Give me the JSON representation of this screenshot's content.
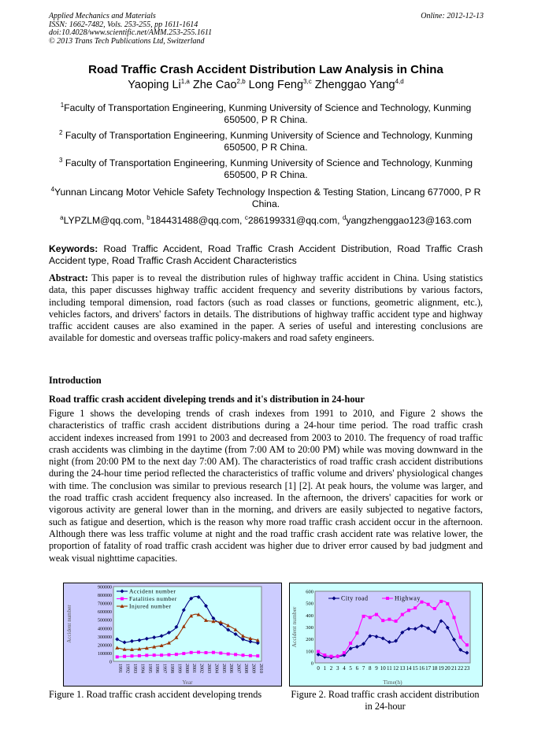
{
  "header": {
    "journal": "Applied Mechanics and Materials",
    "issn": "ISSN: 1662-7482, Vols. 253-255, pp 1611-1614",
    "doi": "doi:10.4028/www.scientific.net/AMM.253-255.1611",
    "copyright": "© 2013 Trans Tech Publications Ltd, Switzerland",
    "online": "Online: 2012-12-13"
  },
  "title": "Road Traffic Crash Accident Distribution Law Analysis in China",
  "authors": [
    {
      "name": "Yaoping Li",
      "sup": "1,a"
    },
    {
      "name": "Zhe Cao",
      "sup": "2,b"
    },
    {
      "name": "Long Feng",
      "sup": "3,c"
    },
    {
      "name": "Zhenggao Yang",
      "sup": "4,d"
    }
  ],
  "affiliations": [
    {
      "sup": "1",
      "text": "Faculty of Transportation Engineering, Kunming University of Science and Technology, Kunming 650500, P R China."
    },
    {
      "sup": "2",
      "text": " Faculty of Transportation Engineering, Kunming University of Science and Technology, Kunming 650500, P R China."
    },
    {
      "sup": "3",
      "text": " Faculty of Transportation Engineering, Kunming University of Science and Technology, Kunming 650500, P R China."
    },
    {
      "sup": "4",
      "text": "Yunnan Lincang Motor Vehicle Safety Technology Inspection & Testing Station, Lincang 677000, P R China."
    }
  ],
  "emails": [
    {
      "sup": "a",
      "text": "LYPZLM@qq.com, "
    },
    {
      "sup": "b",
      "text": "184431488@qq.com, "
    },
    {
      "sup": "c",
      "text": "286199331@qq.com, "
    },
    {
      "sup": "d",
      "text": "yangzhenggao123@163.com"
    }
  ],
  "keywords": {
    "label": "Keywords:",
    "text": " Road Traffic Accident, Road Traffic Crash Accident Distribution, Road Traffic Crash Accident type, Road Traffic Crash Accident Characteristics"
  },
  "abstract": {
    "label": "Abstract:",
    "text": " This paper is to reveal the distribution rules of highway traffic accident in China. Using statistics data, this paper discusses highway traffic accident frequency and severity distributions by various factors, including temporal dimension, road factors (such as road classes or functions, geometric alignment, etc.), vehicles factors, and drivers' factors in details. The distributions of highway traffic accident type and highway traffic accident causes are also examined in the paper. A series of useful and interesting conclusions are available for domestic and overseas traffic policy-makers and road safety engineers."
  },
  "intro_heading": "Introduction",
  "sub_heading": "Road traffic crash accident diveleping trends and it's distribution in 24-hour",
  "body": "Figure 1 shows the developing trends of crash indexes from 1991 to 2010, and Figure 2 shows the characteristics of traffic crash accident distributions during a 24-hour time period. The road traffic crash accident indexes increased from 1991 to 2003 and decreased from 2003 to 2010. The frequency of road traffic crash accidents was climbing in the daytime (from 7:00 AM to 20:00 PM) while was moving downward in the night (from 20:00 PM to the next day 7:00 AM). The characteristics of road traffic crash accident distributions during the 24-hour time period reflected the characteristics of traffic volume and drivers' physiological changes with time. The conclusion was similar to previous research [1] [2]. At peak hours, the volume was larger, and the road traffic crash accident frequency also increased. In the afternoon, the drivers' capacities for work or vigorous activity are general lower than in the morning, and drivers are easily subjected to negative factors, such as fatigue and desertion, which is the reason why more road traffic crash accident occur in the afternoon. Although there was less traffic volume at night and the road traffic crash accident rate was relative lower, the proportion of fatality of road traffic crash accident was higher due to driver error caused by bad judgment and weak visual nighttime capacities.",
  "captions": {
    "fig1": "Figure 1. Road traffic crash accident developing trends",
    "fig2": "Figure 2. Road traffic crash accident distribution in 24-hour"
  },
  "chart_data": [
    {
      "type": "line",
      "xlabel": "Year",
      "ylabel": "Accident number",
      "ylim": [
        0,
        900000
      ],
      "yticks": [
        "0",
        "100000",
        "200000",
        "300000",
        "400000",
        "500000",
        "600000",
        "700000",
        "800000",
        "900000"
      ],
      "legend": "top-left",
      "plot_bg": "#ccffff",
      "frame_bg": "#ccccff",
      "x": [
        "1991",
        "1992",
        "1993",
        "1994",
        "1995",
        "1996",
        "1997",
        "1998",
        "1999",
        "2000",
        "2001",
        "2002",
        "2003",
        "2004",
        "2005",
        "2006",
        "2007",
        "2008",
        "2009",
        "2010"
      ],
      "series": [
        {
          "name": "Accident number",
          "color": "#000080",
          "marker": "diamond",
          "values": [
            265000,
            228000,
            243000,
            254000,
            272000,
            288000,
            305000,
            346000,
            413000,
            617000,
            755000,
            773000,
            667000,
            518000,
            450000,
            379000,
            327000,
            265000,
            238000,
            220000
          ]
        },
        {
          "name": "Fatalities number",
          "color": "#ff00ff",
          "marker": "square",
          "values": [
            53000,
            59000,
            64000,
            67000,
            72000,
            74000,
            74000,
            79000,
            84000,
            94000,
            106000,
            109000,
            104000,
            107000,
            99000,
            89000,
            82000,
            73000,
            68000,
            65000
          ]
        },
        {
          "name": "Injured number",
          "color": "#993300",
          "marker": "triangle",
          "values": [
            162000,
            144000,
            142000,
            148000,
            159000,
            174000,
            190000,
            222000,
            286000,
            419000,
            546000,
            562000,
            494000,
            481000,
            470000,
            431000,
            380000,
            305000,
            275000,
            254000
          ]
        }
      ]
    },
    {
      "type": "line",
      "xlabel": "Time(h)",
      "ylabel": "Accident number",
      "ylim": [
        0,
        600
      ],
      "yticks": [
        "0",
        "100",
        "200",
        "300",
        "400",
        "500",
        "600"
      ],
      "legend": "top",
      "plot_bg": "#ccccff",
      "frame_bg": "#ccffff",
      "x": [
        "0",
        "1",
        "2",
        "3",
        "4",
        "5",
        "6",
        "7",
        "8",
        "9",
        "10",
        "11",
        "12",
        "13",
        "14",
        "15",
        "16",
        "17",
        "18",
        "19",
        "20",
        "21",
        "22",
        "23"
      ],
      "series": [
        {
          "name": "City road",
          "color": "#000080",
          "marker": "diamond",
          "values": [
            70,
            50,
            45,
            55,
            65,
            120,
            135,
            160,
            225,
            220,
            205,
            175,
            185,
            255,
            285,
            285,
            310,
            290,
            260,
            350,
            295,
            195,
            110,
            85
          ]
        },
        {
          "name": "Highway",
          "color": "#ff00ff",
          "marker": "square",
          "values": [
            95,
            65,
            55,
            55,
            85,
            165,
            250,
            390,
            380,
            405,
            355,
            365,
            350,
            405,
            440,
            460,
            510,
            490,
            455,
            515,
            495,
            380,
            215,
            150
          ]
        }
      ]
    }
  ]
}
